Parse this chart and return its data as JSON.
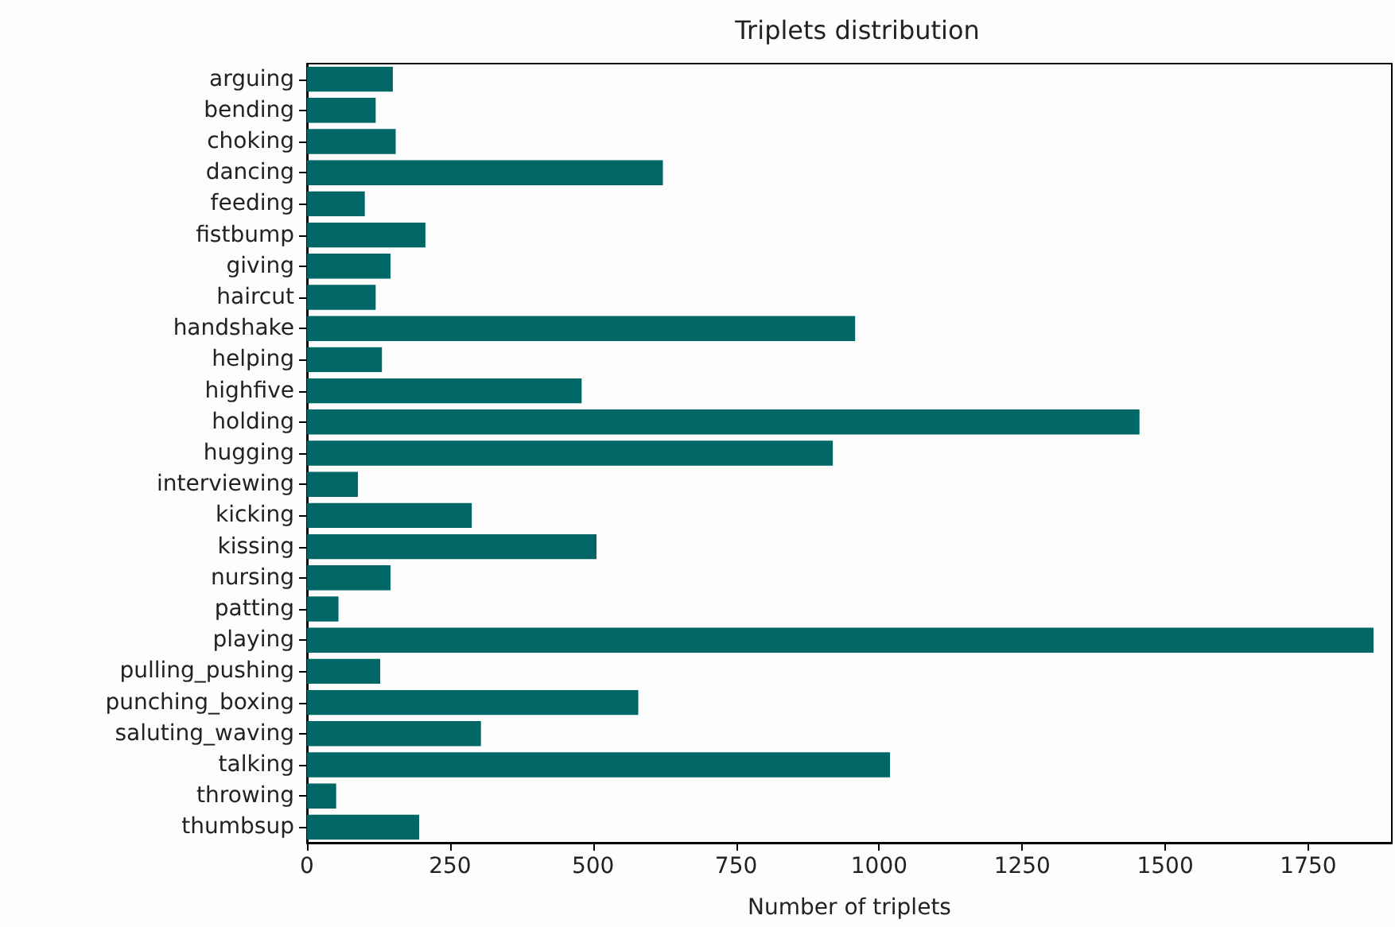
{
  "chart_data": {
    "type": "bar",
    "orientation": "horizontal",
    "title": "Triplets distribution",
    "xlabel": "Number of triplets",
    "categories": [
      "arguing",
      "bending",
      "choking",
      "dancing",
      "feeding",
      "fistbump",
      "giving",
      "haircut",
      "handshake",
      "helping",
      "highfive",
      "holding",
      "hugging",
      "interviewing",
      "kicking",
      "kissing",
      "nursing",
      "patting",
      "playing",
      "pulling_pushing",
      "punching_boxing",
      "saluting_waving",
      "talking",
      "throwing",
      "thumbsup"
    ],
    "values": [
      150,
      120,
      155,
      622,
      101,
      207,
      146,
      120,
      958,
      131,
      480,
      1455,
      919,
      89,
      288,
      506,
      146,
      55,
      1864,
      128,
      579,
      304,
      1019,
      51,
      196
    ],
    "color": "#006666",
    "xlim": [
      0,
      1896
    ],
    "xticks": [
      0,
      250,
      500,
      750,
      1000,
      1250,
      1500,
      1750
    ],
    "grid": false
  }
}
